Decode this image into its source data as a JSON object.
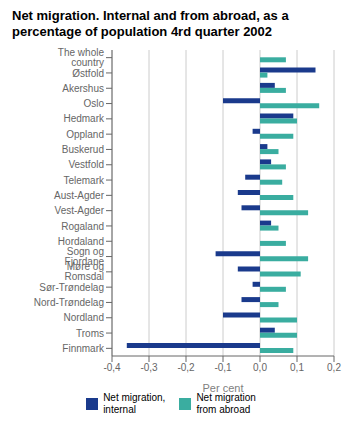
{
  "chart_data": {
    "type": "bar",
    "orientation": "horizontal",
    "title": "Net migration. Internal and from abroad, as a percentage of population 4rd quarter 2002",
    "xlabel": "Per cent",
    "categories": [
      "The whole country",
      "Østfold",
      "Akershus",
      "Oslo",
      "Hedmark",
      "Oppland",
      "Buskerud",
      "Vestfold",
      "Telemark",
      "Aust-Agder",
      "Vest-Agder",
      "Rogaland",
      "Hordaland",
      "Sogn og Fjordane",
      "Møre og Romsdal",
      "Sør-Trøndelag",
      "Nord-Trøndelag",
      "Nordland",
      "Troms",
      "Finnmark"
    ],
    "series": [
      {
        "name": "Net migration,\ninternal",
        "color": "#1a3a8c",
        "values": [
          0.0,
          0.15,
          0.04,
          -0.1,
          0.09,
          -0.02,
          0.02,
          0.03,
          -0.04,
          -0.06,
          -0.05,
          0.03,
          0.0,
          -0.12,
          -0.06,
          -0.02,
          -0.05,
          -0.1,
          0.04,
          -0.36
        ]
      },
      {
        "name": "Net migration\nfrom abroad",
        "color": "#3aada0",
        "values": [
          0.07,
          0.02,
          0.07,
          0.16,
          0.1,
          0.09,
          0.05,
          0.07,
          0.06,
          0.09,
          0.13,
          0.05,
          0.07,
          0.13,
          0.11,
          0.07,
          0.05,
          0.1,
          0.1,
          0.09
        ]
      }
    ],
    "xlim": [
      -0.4,
      0.2
    ],
    "xticks": [
      {
        "value": -0.4,
        "label": "-0,4"
      },
      {
        "value": -0.3,
        "label": "-0,3"
      },
      {
        "value": -0.2,
        "label": "-0,2"
      },
      {
        "value": -0.1,
        "label": "-0,1"
      },
      {
        "value": 0.0,
        "label": "0,0"
      },
      {
        "value": 0.1,
        "label": "0,1"
      },
      {
        "value": 0.2,
        "label": "0,2"
      }
    ],
    "grid": true,
    "legend": "bottom"
  }
}
